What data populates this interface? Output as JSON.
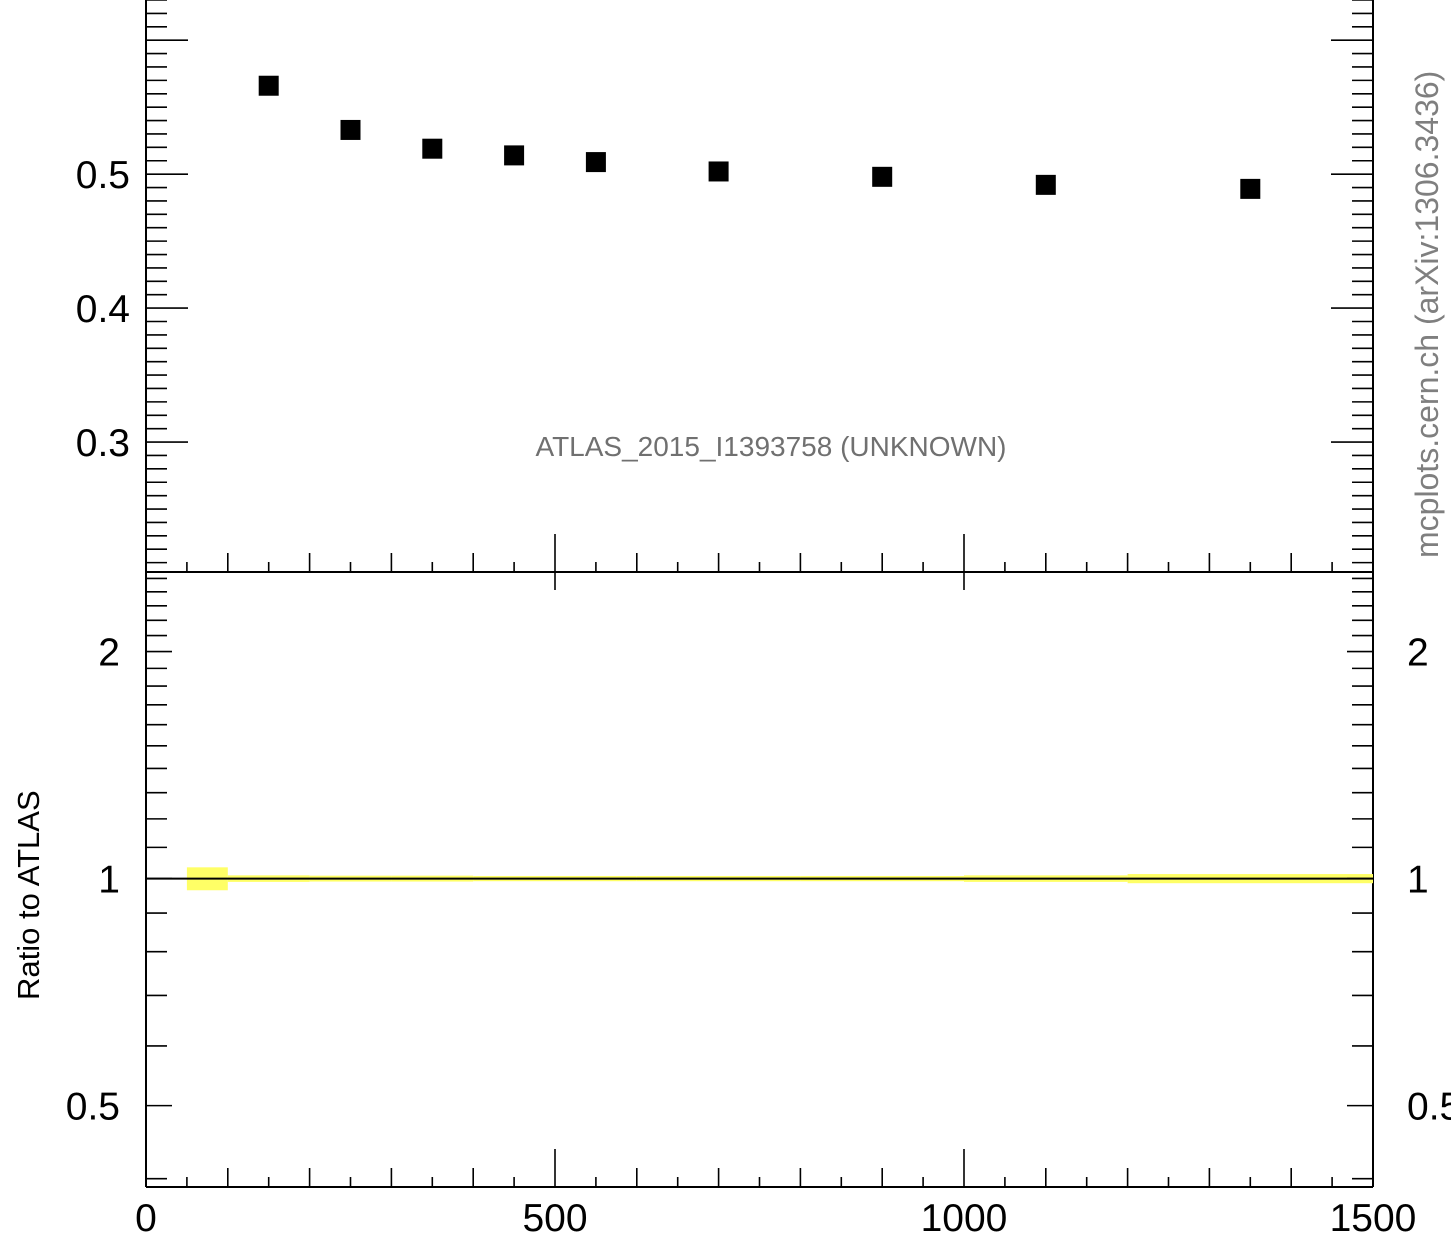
{
  "chart_data": [
    {
      "type": "scatter",
      "x": [
        150,
        250,
        350,
        450,
        550,
        700,
        900,
        1100,
        1350
      ],
      "y": [
        0.566,
        0.533,
        0.519,
        0.514,
        0.509,
        0.502,
        0.498,
        0.492,
        0.489
      ],
      "y_tick_labels": [
        "0.3",
        "0.4",
        "0.5"
      ],
      "ylim": [
        0.203,
        0.63
      ],
      "xlim": [
        0,
        1500
      ],
      "marker": "filled-square",
      "marker_color": "#000000",
      "annotation": "ATLAS_2015_I1393758 (UNKNOWN)"
    },
    {
      "type": "area",
      "ylabel": "Ratio to ATLAS",
      "y_scale": "log",
      "ylim": [
        0.39,
        2.55
      ],
      "xlim": [
        0,
        1500
      ],
      "y_tick_labels": [
        "0.5",
        "1",
        "2"
      ],
      "x_tick_labels": [
        "0",
        "500",
        "1000",
        "1500"
      ],
      "reference_line": 1,
      "band_color": "#ffff66",
      "band": [
        {
          "x0": 50,
          "x1": 100,
          "lo": 0.965,
          "hi": 1.035
        },
        {
          "x0": 100,
          "x1": 200,
          "lo": 0.99,
          "hi": 1.01
        },
        {
          "x0": 200,
          "x1": 300,
          "lo": 0.991,
          "hi": 1.009
        },
        {
          "x0": 300,
          "x1": 400,
          "lo": 0.991,
          "hi": 1.009
        },
        {
          "x0": 400,
          "x1": 500,
          "lo": 0.992,
          "hi": 1.008
        },
        {
          "x0": 500,
          "x1": 600,
          "lo": 0.992,
          "hi": 1.008
        },
        {
          "x0": 600,
          "x1": 800,
          "lo": 0.992,
          "hi": 1.008
        },
        {
          "x0": 800,
          "x1": 1000,
          "lo": 0.992,
          "hi": 1.008
        },
        {
          "x0": 1000,
          "x1": 1200,
          "lo": 0.99,
          "hi": 1.01
        },
        {
          "x0": 1200,
          "x1": 1500,
          "lo": 0.986,
          "hi": 1.014
        }
      ]
    }
  ],
  "watermark": "mcplots.cern.ch (arXiv:1306.3436)"
}
